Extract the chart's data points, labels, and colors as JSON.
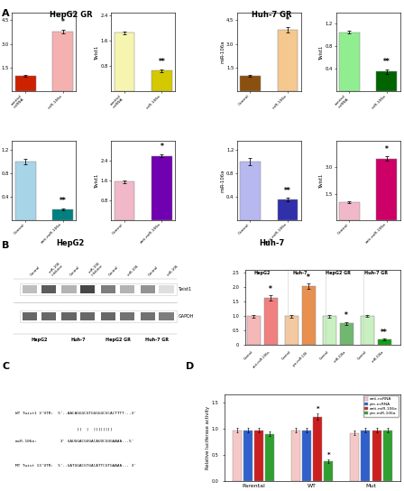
{
  "panel_A": {
    "HepG2GR": {
      "miR_bars": {
        "labels": [
          "control\nmiRNA",
          "miR-106a"
        ],
        "values": [
          1.0,
          3.8
        ],
        "errors": [
          0.05,
          0.12
        ],
        "colors": [
          "#cc2200",
          "#f5b0b0"
        ],
        "ylabel": "miR-106a",
        "sig": [
          "",
          "*"
        ],
        "ylim": [
          0,
          5.0
        ]
      },
      "twist_bars": {
        "labels": [
          "control\nmiRNA",
          "miR-106a"
        ],
        "values": [
          1.85,
          0.65
        ],
        "errors": [
          0.05,
          0.05
        ],
        "colors": [
          "#f5f5b0",
          "#d4c800"
        ],
        "ylabel": "Twist1",
        "sig": [
          "",
          "**"
        ],
        "ylim": [
          0,
          2.5
        ]
      }
    },
    "Huh7GR": {
      "miR_bars": {
        "labels": [
          "Control",
          "miR-106a"
        ],
        "values": [
          1.0,
          3.9
        ],
        "errors": [
          0.05,
          0.15
        ],
        "colors": [
          "#8B5010",
          "#f5c890"
        ],
        "ylabel": "miR-106a",
        "sig": [
          "",
          "*"
        ],
        "ylim": [
          0,
          5.0
        ]
      },
      "twist_bars": {
        "labels": [
          "control\nmiRNA",
          "miR-106a"
        ],
        "values": [
          1.05,
          0.35
        ],
        "errors": [
          0.03,
          0.04
        ],
        "colors": [
          "#90ee90",
          "#006400"
        ],
        "ylabel": "Twist1",
        "sig": [
          "",
          "**"
        ],
        "ylim": [
          0,
          1.4
        ]
      }
    },
    "HepG2": {
      "miR_bars": {
        "labels": [
          "Control",
          "anti-miR-106a"
        ],
        "values": [
          1.0,
          0.18
        ],
        "errors": [
          0.05,
          0.02
        ],
        "colors": [
          "#a8d4e8",
          "#008080"
        ],
        "ylabel": "miR-106a",
        "sig": [
          "",
          "**"
        ],
        "ylim": [
          0,
          1.35
        ]
      },
      "twist_bars": {
        "labels": [
          "Control",
          "anti-miR-106a"
        ],
        "values": [
          1.55,
          2.6
        ],
        "errors": [
          0.05,
          0.06
        ],
        "colors": [
          "#f0b8c8",
          "#7000b0"
        ],
        "ylabel": "Twist1",
        "sig": [
          "",
          "*"
        ],
        "ylim": [
          0,
          3.2
        ]
      }
    },
    "Huh7": {
      "miR_bars": {
        "labels": [
          "Control",
          "anti-miR-106a"
        ],
        "values": [
          1.0,
          0.35
        ],
        "errors": [
          0.06,
          0.03
        ],
        "colors": [
          "#b8b8f0",
          "#3030aa"
        ],
        "ylabel": "miR-106a",
        "sig": [
          "",
          "**"
        ],
        "ylim": [
          0,
          1.35
        ]
      },
      "twist_bars": {
        "labels": [
          "Control",
          "anti-miR-106a"
        ],
        "values": [
          1.0,
          3.5
        ],
        "errors": [
          0.06,
          0.12
        ],
        "colors": [
          "#f0b8c8",
          "#cc0066"
        ],
        "ylabel": "Twist1",
        "sig": [
          "",
          "*"
        ],
        "ylim": [
          0,
          4.5
        ]
      }
    }
  },
  "panel_B_bars": {
    "groups": [
      "HepG2",
      "Huh-7",
      "HepG2 GR",
      "Huh-7 GR"
    ],
    "values": [
      [
        1.0,
        1.62
      ],
      [
        1.0,
        2.02
      ],
      [
        1.0,
        0.74
      ],
      [
        1.0,
        0.18
      ]
    ],
    "errors": [
      [
        0.05,
        0.1
      ],
      [
        0.05,
        0.09
      ],
      [
        0.05,
        0.06
      ],
      [
        0.04,
        0.03
      ]
    ],
    "colors_ctrl": [
      "#f5b8b8",
      "#f5c8a0",
      "#c8f0c0",
      "#c8f0c0"
    ],
    "colors_treat": [
      "#f08080",
      "#e89050",
      "#70b870",
      "#10a010"
    ],
    "sig": [
      [
        "",
        "*"
      ],
      [
        "",
        "*"
      ],
      [
        "",
        "*"
      ],
      [
        "",
        "**"
      ]
    ],
    "ylim": [
      0,
      2.6
    ],
    "yticks": [
      0,
      0.5,
      1.0,
      1.5,
      2.0,
      2.5
    ]
  },
  "panel_D": {
    "groups": [
      "Parental",
      "WT",
      "Mut"
    ],
    "conditions": [
      "anti-ncRNA",
      "pre-ncRNA",
      "anti-miR-106a",
      "pre-miR-106a"
    ],
    "colors": [
      "#f5c8c8",
      "#3060cc",
      "#cc2020",
      "#30a030"
    ],
    "values": [
      [
        0.97,
        0.97,
        0.97,
        0.9
      ],
      [
        0.97,
        0.97,
        1.23,
        0.38
      ],
      [
        0.92,
        0.97,
        0.97,
        0.97
      ]
    ],
    "errors": [
      [
        0.04,
        0.04,
        0.04,
        0.04
      ],
      [
        0.04,
        0.04,
        0.06,
        0.03
      ],
      [
        0.04,
        0.04,
        0.04,
        0.04
      ]
    ],
    "sig": [
      [
        "",
        "",
        "",
        ""
      ],
      [
        "",
        "",
        "*",
        "*"
      ],
      [
        "",
        "",
        "",
        ""
      ]
    ],
    "ylim": [
      0.0,
      1.65
    ],
    "yticks": [
      0.0,
      0.5,
      1.0,
      1.5
    ]
  },
  "wb_groups": [
    {
      "name": "HepG2",
      "labels": [
        "Control",
        "miR-106\ninhibitor"
      ],
      "twist_intensity": [
        0.3,
        0.75
      ],
      "gapdh_intensity": [
        0.7,
        0.7
      ]
    },
    {
      "name": "Huh-7",
      "labels": [
        "Control",
        "miR-106\ninhibitor"
      ],
      "twist_intensity": [
        0.35,
        0.85
      ],
      "gapdh_intensity": [
        0.7,
        0.7
      ]
    },
    {
      "name": "HepG2 GR",
      "labels": [
        "Control",
        "miR-106"
      ],
      "twist_intensity": [
        0.6,
        0.35
      ],
      "gapdh_intensity": [
        0.7,
        0.65
      ]
    },
    {
      "name": "Huh-7 GR",
      "labels": [
        "Control",
        "miR-106"
      ],
      "twist_intensity": [
        0.5,
        0.15
      ],
      "gapdh_intensity": [
        0.65,
        0.6
      ]
    }
  ],
  "seq_lines": [
    "WT Twist1 3'UTR:  5'..AACAGGGCGTGGGGGCGCACTTTT...3'",
    "                          ||  |  ||||||||",
    "miR-106a:          3' GAUGGACGUGACAUUCGUGAAAA...5'",
    "",
    "MT Twist 13'UTR:  5'..GATGGACGTGACATTCGTGAAAA... 3'"
  ],
  "background": "#ffffff"
}
